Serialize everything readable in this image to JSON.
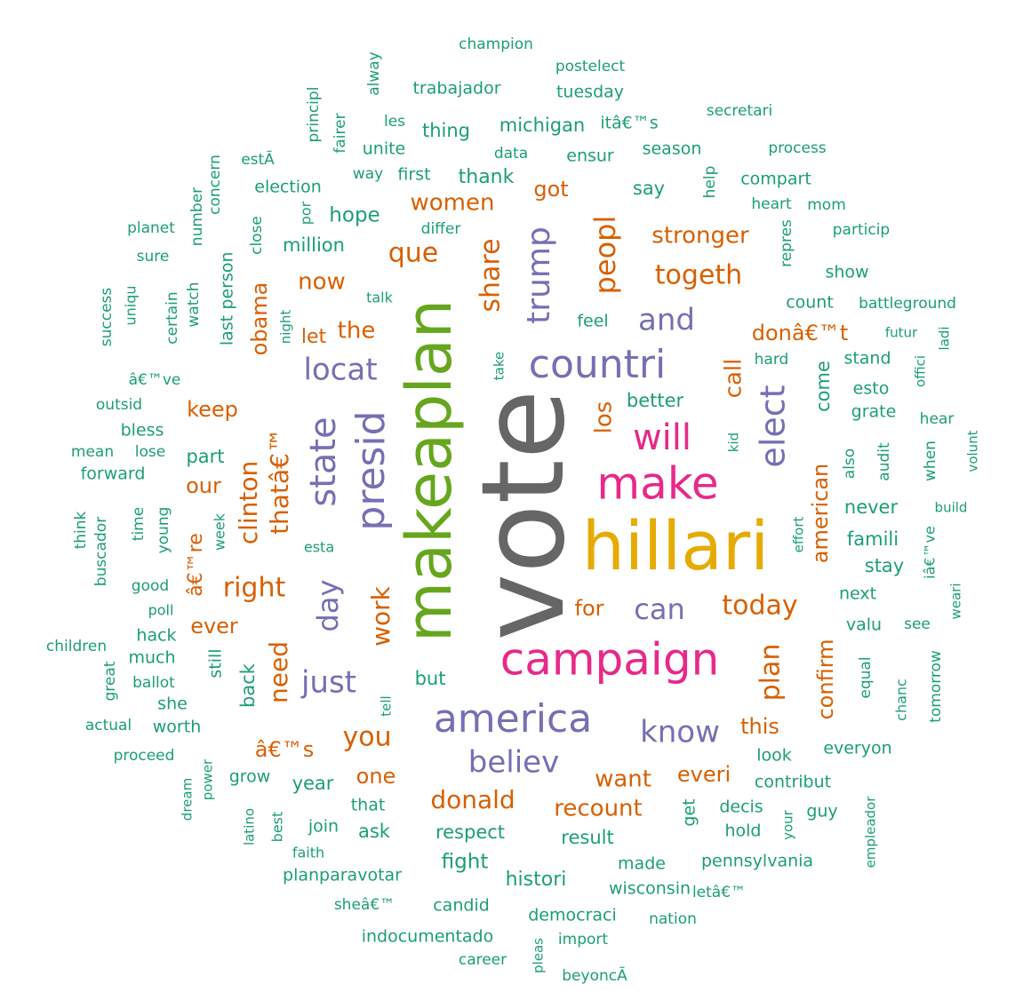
{
  "palette": {
    "teal": "#1b9e77",
    "orange": "#d95f02",
    "purple": "#7570b3",
    "pink": "#e7298a",
    "green": "#66a61e",
    "gold": "#e6ab02",
    "gray": "#666666"
  },
  "words": [
    {
      "text": "vote",
      "color": "gray",
      "rotated": true
    },
    {
      "text": "hillari",
      "color": "gold",
      "rotated": false
    },
    {
      "text": "makeaplan",
      "color": "green",
      "rotated": true
    },
    {
      "text": "campaign",
      "color": "pink",
      "rotated": false
    },
    {
      "text": "make",
      "color": "pink",
      "rotated": false
    },
    {
      "text": "presid",
      "color": "purple",
      "rotated": true
    },
    {
      "text": "america",
      "color": "purple",
      "rotated": false
    },
    {
      "text": "countri",
      "color": "purple",
      "rotated": false
    },
    {
      "text": "state",
      "color": "purple",
      "rotated": true
    },
    {
      "text": "will",
      "color": "pink",
      "rotated": false
    },
    {
      "text": "elect",
      "color": "purple",
      "rotated": true
    },
    {
      "text": "trump",
      "color": "purple",
      "rotated": true
    },
    {
      "text": "locat",
      "color": "purple",
      "rotated": false
    },
    {
      "text": "believ",
      "color": "purple",
      "rotated": false
    },
    {
      "text": "know",
      "color": "purple",
      "rotated": false
    },
    {
      "text": "just",
      "color": "purple",
      "rotated": false
    },
    {
      "text": "and",
      "color": "purple",
      "rotated": false
    },
    {
      "text": "can",
      "color": "purple",
      "rotated": false
    },
    {
      "text": "day",
      "color": "purple",
      "rotated": true
    },
    {
      "text": "peopl",
      "color": "orange",
      "rotated": true
    },
    {
      "text": "share",
      "color": "orange",
      "rotated": true
    },
    {
      "text": "togeth",
      "color": "orange",
      "rotated": false
    },
    {
      "text": "today",
      "color": "orange",
      "rotated": false
    },
    {
      "text": "plan",
      "color": "orange",
      "rotated": true
    },
    {
      "text": "que",
      "color": "orange",
      "rotated": false
    },
    {
      "text": "right",
      "color": "orange",
      "rotated": false
    },
    {
      "text": "you",
      "color": "orange",
      "rotated": false
    },
    {
      "text": "donald",
      "color": "orange",
      "rotated": false
    },
    {
      "text": "work",
      "color": "orange",
      "rotated": true
    },
    {
      "text": "need",
      "color": "orange",
      "rotated": true
    },
    {
      "text": "clinton",
      "color": "orange",
      "rotated": true
    },
    {
      "text": "thatâ€™",
      "color": "orange",
      "rotated": true
    },
    {
      "text": "want",
      "color": "orange",
      "rotated": false
    },
    {
      "text": "recount",
      "color": "orange",
      "rotated": false
    },
    {
      "text": "stronger",
      "color": "orange",
      "rotated": false
    },
    {
      "text": "the",
      "color": "orange",
      "rotated": false
    },
    {
      "text": "now",
      "color": "orange",
      "rotated": false
    },
    {
      "text": "women",
      "color": "orange",
      "rotated": false
    },
    {
      "text": "call",
      "color": "orange",
      "rotated": true
    },
    {
      "text": "los",
      "color": "orange",
      "rotated": true
    },
    {
      "text": "donâ€™t",
      "color": "orange",
      "rotated": false
    },
    {
      "text": "everi",
      "color": "orange",
      "rotated": false
    },
    {
      "text": "one",
      "color": "orange",
      "rotated": false
    },
    {
      "text": "â€™s",
      "color": "orange",
      "rotated": false
    },
    {
      "text": "american",
      "color": "orange",
      "rotated": true
    },
    {
      "text": "confirm",
      "color": "orange",
      "rotated": true
    },
    {
      "text": "for",
      "color": "orange",
      "rotated": false
    },
    {
      "text": "this",
      "color": "orange",
      "rotated": false
    },
    {
      "text": "got",
      "color": "orange",
      "rotated": false
    },
    {
      "text": "keep",
      "color": "orange",
      "rotated": false
    },
    {
      "text": "our",
      "color": "orange",
      "rotated": false
    },
    {
      "text": "ever",
      "color": "orange",
      "rotated": false
    },
    {
      "text": "obama",
      "color": "orange",
      "rotated": true
    },
    {
      "text": "let",
      "color": "orange",
      "rotated": false
    },
    {
      "text": "â€™re",
      "color": "orange",
      "rotated": true
    },
    {
      "text": "champion",
      "color": "teal",
      "rotated": false
    },
    {
      "text": "postelect",
      "color": "teal",
      "rotated": false
    },
    {
      "text": "trabajador",
      "color": "teal",
      "rotated": false
    },
    {
      "text": "tuesday",
      "color": "teal",
      "rotated": false
    },
    {
      "text": "alway",
      "color": "teal",
      "rotated": true
    },
    {
      "text": "principl",
      "color": "teal",
      "rotated": true
    },
    {
      "text": "fairer",
      "color": "teal",
      "rotated": true
    },
    {
      "text": "les",
      "color": "teal",
      "rotated": false
    },
    {
      "text": "thing",
      "color": "teal",
      "rotated": false
    },
    {
      "text": "michigan",
      "color": "teal",
      "rotated": false
    },
    {
      "text": "itâ€™s",
      "color": "teal",
      "rotated": false
    },
    {
      "text": "secretari",
      "color": "teal",
      "rotated": false
    },
    {
      "text": "unite",
      "color": "teal",
      "rotated": false
    },
    {
      "text": "data",
      "color": "teal",
      "rotated": false
    },
    {
      "text": "season",
      "color": "teal",
      "rotated": false
    },
    {
      "text": "process",
      "color": "teal",
      "rotated": false
    },
    {
      "text": "estÃ",
      "color": "teal",
      "rotated": false
    },
    {
      "text": "way",
      "color": "teal",
      "rotated": false
    },
    {
      "text": "first",
      "color": "teal",
      "rotated": false
    },
    {
      "text": "thank",
      "color": "teal",
      "rotated": false
    },
    {
      "text": "ensur",
      "color": "teal",
      "rotated": false
    },
    {
      "text": "concern",
      "color": "teal",
      "rotated": true
    },
    {
      "text": "election",
      "color": "teal",
      "rotated": false
    },
    {
      "text": "compart",
      "color": "teal",
      "rotated": false
    },
    {
      "text": "say",
      "color": "teal",
      "rotated": false
    },
    {
      "text": "help",
      "color": "teal",
      "rotated": true
    },
    {
      "text": "number",
      "color": "teal",
      "rotated": true
    },
    {
      "text": "por",
      "color": "teal",
      "rotated": true
    },
    {
      "text": "heart",
      "color": "teal",
      "rotated": false
    },
    {
      "text": "mom",
      "color": "teal",
      "rotated": false
    },
    {
      "text": "hope",
      "color": "teal",
      "rotated": false
    },
    {
      "text": "planet",
      "color": "teal",
      "rotated": false
    },
    {
      "text": "close",
      "color": "teal",
      "rotated": true
    },
    {
      "text": "differ",
      "color": "teal",
      "rotated": false
    },
    {
      "text": "particip",
      "color": "teal",
      "rotated": false
    },
    {
      "text": "sure",
      "color": "teal",
      "rotated": false
    },
    {
      "text": "million",
      "color": "teal",
      "rotated": false
    },
    {
      "text": "repres",
      "color": "teal",
      "rotated": true
    },
    {
      "text": "person",
      "color": "teal",
      "rotated": true
    },
    {
      "text": "show",
      "color": "teal",
      "rotated": false
    },
    {
      "text": "uniqu",
      "color": "teal",
      "rotated": true
    },
    {
      "text": "talk",
      "color": "teal",
      "rotated": false
    },
    {
      "text": "count",
      "color": "teal",
      "rotated": false
    },
    {
      "text": "battleground",
      "color": "teal",
      "rotated": false
    },
    {
      "text": "success",
      "color": "teal",
      "rotated": true
    },
    {
      "text": "certain",
      "color": "teal",
      "rotated": true
    },
    {
      "text": "watch",
      "color": "teal",
      "rotated": true
    },
    {
      "text": "last",
      "color": "teal",
      "rotated": true
    },
    {
      "text": "night",
      "color": "teal",
      "rotated": true
    },
    {
      "text": "feel",
      "color": "teal",
      "rotated": false
    },
    {
      "text": "futur",
      "color": "teal",
      "rotated": false
    },
    {
      "text": "ladi",
      "color": "teal",
      "rotated": true
    },
    {
      "text": "hard",
      "color": "teal",
      "rotated": false
    },
    {
      "text": "stand",
      "color": "teal",
      "rotated": false
    },
    {
      "text": "offici",
      "color": "teal",
      "rotated": true
    },
    {
      "text": "â€™ve",
      "color": "teal",
      "rotated": false
    },
    {
      "text": "take",
      "color": "teal",
      "rotated": true
    },
    {
      "text": "come",
      "color": "teal",
      "rotated": true
    },
    {
      "text": "esto",
      "color": "teal",
      "rotated": false
    },
    {
      "text": "better",
      "color": "teal",
      "rotated": false
    },
    {
      "text": "outsid",
      "color": "teal",
      "rotated": false
    },
    {
      "text": "grate",
      "color": "teal",
      "rotated": false
    },
    {
      "text": "hear",
      "color": "teal",
      "rotated": false
    },
    {
      "text": "bless",
      "color": "teal",
      "rotated": false
    },
    {
      "text": "volunt",
      "color": "teal",
      "rotated": true
    },
    {
      "text": "mean",
      "color": "teal",
      "rotated": false
    },
    {
      "text": "lose",
      "color": "teal",
      "rotated": false
    },
    {
      "text": "kid",
      "color": "teal",
      "rotated": true
    },
    {
      "text": "also",
      "color": "teal",
      "rotated": true
    },
    {
      "text": "audit",
      "color": "teal",
      "rotated": true
    },
    {
      "text": "when",
      "color": "teal",
      "rotated": true
    },
    {
      "text": "part",
      "color": "teal",
      "rotated": false
    },
    {
      "text": "forward",
      "color": "teal",
      "rotated": false
    },
    {
      "text": "never",
      "color": "teal",
      "rotated": false
    },
    {
      "text": "build",
      "color": "teal",
      "rotated": false
    },
    {
      "text": "think",
      "color": "teal",
      "rotated": true
    },
    {
      "text": "buscador",
      "color": "teal",
      "rotated": true
    },
    {
      "text": "time",
      "color": "teal",
      "rotated": true
    },
    {
      "text": "young",
      "color": "teal",
      "rotated": true
    },
    {
      "text": "week",
      "color": "teal",
      "rotated": true
    },
    {
      "text": "esta",
      "color": "teal",
      "rotated": false
    },
    {
      "text": "effort",
      "color": "teal",
      "rotated": true
    },
    {
      "text": "famili",
      "color": "teal",
      "rotated": false
    },
    {
      "text": "iâ€™ve",
      "color": "teal",
      "rotated": true
    },
    {
      "text": "good",
      "color": "teal",
      "rotated": false
    },
    {
      "text": "stay",
      "color": "teal",
      "rotated": false
    },
    {
      "text": "next",
      "color": "teal",
      "rotated": false
    },
    {
      "text": "weari",
      "color": "teal",
      "rotated": true
    },
    {
      "text": "poll",
      "color": "teal",
      "rotated": false
    },
    {
      "text": "valu",
      "color": "teal",
      "rotated": false
    },
    {
      "text": "see",
      "color": "teal",
      "rotated": false
    },
    {
      "text": "hack",
      "color": "teal",
      "rotated": false
    },
    {
      "text": "children",
      "color": "teal",
      "rotated": false
    },
    {
      "text": "much",
      "color": "teal",
      "rotated": false
    },
    {
      "text": "still",
      "color": "teal",
      "rotated": true
    },
    {
      "text": "great",
      "color": "teal",
      "rotated": true
    },
    {
      "text": "back",
      "color": "teal",
      "rotated": true
    },
    {
      "text": "but",
      "color": "teal",
      "rotated": false
    },
    {
      "text": "equal",
      "color": "teal",
      "rotated": true
    },
    {
      "text": "chanc",
      "color": "teal",
      "rotated": true
    },
    {
      "text": "tomorrow",
      "color": "teal",
      "rotated": true
    },
    {
      "text": "ballot",
      "color": "teal",
      "rotated": false
    },
    {
      "text": "she",
      "color": "teal",
      "rotated": false
    },
    {
      "text": "tell",
      "color": "teal",
      "rotated": true
    },
    {
      "text": "actual",
      "color": "teal",
      "rotated": false
    },
    {
      "text": "worth",
      "color": "teal",
      "rotated": false
    },
    {
      "text": "proceed",
      "color": "teal",
      "rotated": false
    },
    {
      "text": "look",
      "color": "teal",
      "rotated": false
    },
    {
      "text": "everyon",
      "color": "teal",
      "rotated": false
    },
    {
      "text": "power",
      "color": "teal",
      "rotated": true
    },
    {
      "text": "dream",
      "color": "teal",
      "rotated": true
    },
    {
      "text": "grow",
      "color": "teal",
      "rotated": false
    },
    {
      "text": "year",
      "color": "teal",
      "rotated": false
    },
    {
      "text": "contribut",
      "color": "teal",
      "rotated": false
    },
    {
      "text": "that",
      "color": "teal",
      "rotated": false
    },
    {
      "text": "get",
      "color": "teal",
      "rotated": true
    },
    {
      "text": "decis",
      "color": "teal",
      "rotated": false
    },
    {
      "text": "guy",
      "color": "teal",
      "rotated": false
    },
    {
      "text": "empleador",
      "color": "teal",
      "rotated": true
    },
    {
      "text": "latino",
      "color": "teal",
      "rotated": true
    },
    {
      "text": "best",
      "color": "teal",
      "rotated": true
    },
    {
      "text": "join",
      "color": "teal",
      "rotated": false
    },
    {
      "text": "ask",
      "color": "teal",
      "rotated": false
    },
    {
      "text": "respect",
      "color": "teal",
      "rotated": false
    },
    {
      "text": "result",
      "color": "teal",
      "rotated": false
    },
    {
      "text": "hold",
      "color": "teal",
      "rotated": false
    },
    {
      "text": "your",
      "color": "teal",
      "rotated": true
    },
    {
      "text": "faith",
      "color": "teal",
      "rotated": false
    },
    {
      "text": "fight",
      "color": "teal",
      "rotated": false
    },
    {
      "text": "made",
      "color": "teal",
      "rotated": false
    },
    {
      "text": "pennsylvania",
      "color": "teal",
      "rotated": false
    },
    {
      "text": "planparavotar",
      "color": "teal",
      "rotated": false
    },
    {
      "text": "histori",
      "color": "teal",
      "rotated": false
    },
    {
      "text": "wisconsin",
      "color": "teal",
      "rotated": false
    },
    {
      "text": "letâ€™",
      "color": "teal",
      "rotated": false
    },
    {
      "text": "sheâ€™",
      "color": "teal",
      "rotated": false
    },
    {
      "text": "candid",
      "color": "teal",
      "rotated": false
    },
    {
      "text": "democraci",
      "color": "teal",
      "rotated": false
    },
    {
      "text": "nation",
      "color": "teal",
      "rotated": false
    },
    {
      "text": "indocumentado",
      "color": "teal",
      "rotated": false
    },
    {
      "text": "import",
      "color": "teal",
      "rotated": false
    },
    {
      "text": "career",
      "color": "teal",
      "rotated": false
    },
    {
      "text": "pleas",
      "color": "teal",
      "rotated": true
    },
    {
      "text": "beyoncÃ",
      "color": "teal",
      "rotated": false
    }
  ]
}
